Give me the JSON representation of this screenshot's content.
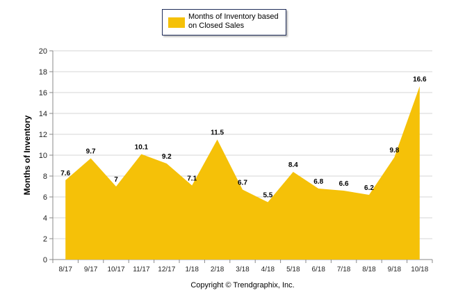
{
  "chart_data": {
    "type": "area",
    "categories": [
      "8/17",
      "9/17",
      "10/17",
      "11/17",
      "12/17",
      "1/18",
      "2/18",
      "3/18",
      "4/18",
      "5/18",
      "6/18",
      "7/18",
      "8/18",
      "9/18",
      "10/18"
    ],
    "series": [
      {
        "name": "Months of Inventory based on Closed Sales",
        "values": [
          7.6,
          9.7,
          7,
          10.1,
          9.2,
          7.1,
          11.5,
          6.7,
          5.5,
          8.4,
          6.8,
          6.6,
          6.2,
          9.8,
          16.6
        ]
      }
    ],
    "data_labels": [
      "7.6",
      "9.7",
      "7",
      "10.1",
      "9.2",
      "7.1",
      "11.5",
      "6.7",
      "5.5",
      "8.4",
      "6.8",
      "6.6",
      "6.2",
      "9.8",
      "16.6"
    ],
    "yticks": [
      "0",
      "2",
      "4",
      "6",
      "8",
      "10",
      "12",
      "14",
      "16",
      "18",
      "20"
    ],
    "ylim": [
      0,
      20
    ],
    "ylabel": "Months of Inventory",
    "xlabel": "",
    "grid": true,
    "legend_position": "top-center",
    "footer": "Copyright © Trendgraphix, Inc.",
    "colors": {
      "fill": "#f5c108",
      "grid": "#d4d4d4",
      "axis": "#888888",
      "legend_border": "#1f2d5a"
    }
  }
}
